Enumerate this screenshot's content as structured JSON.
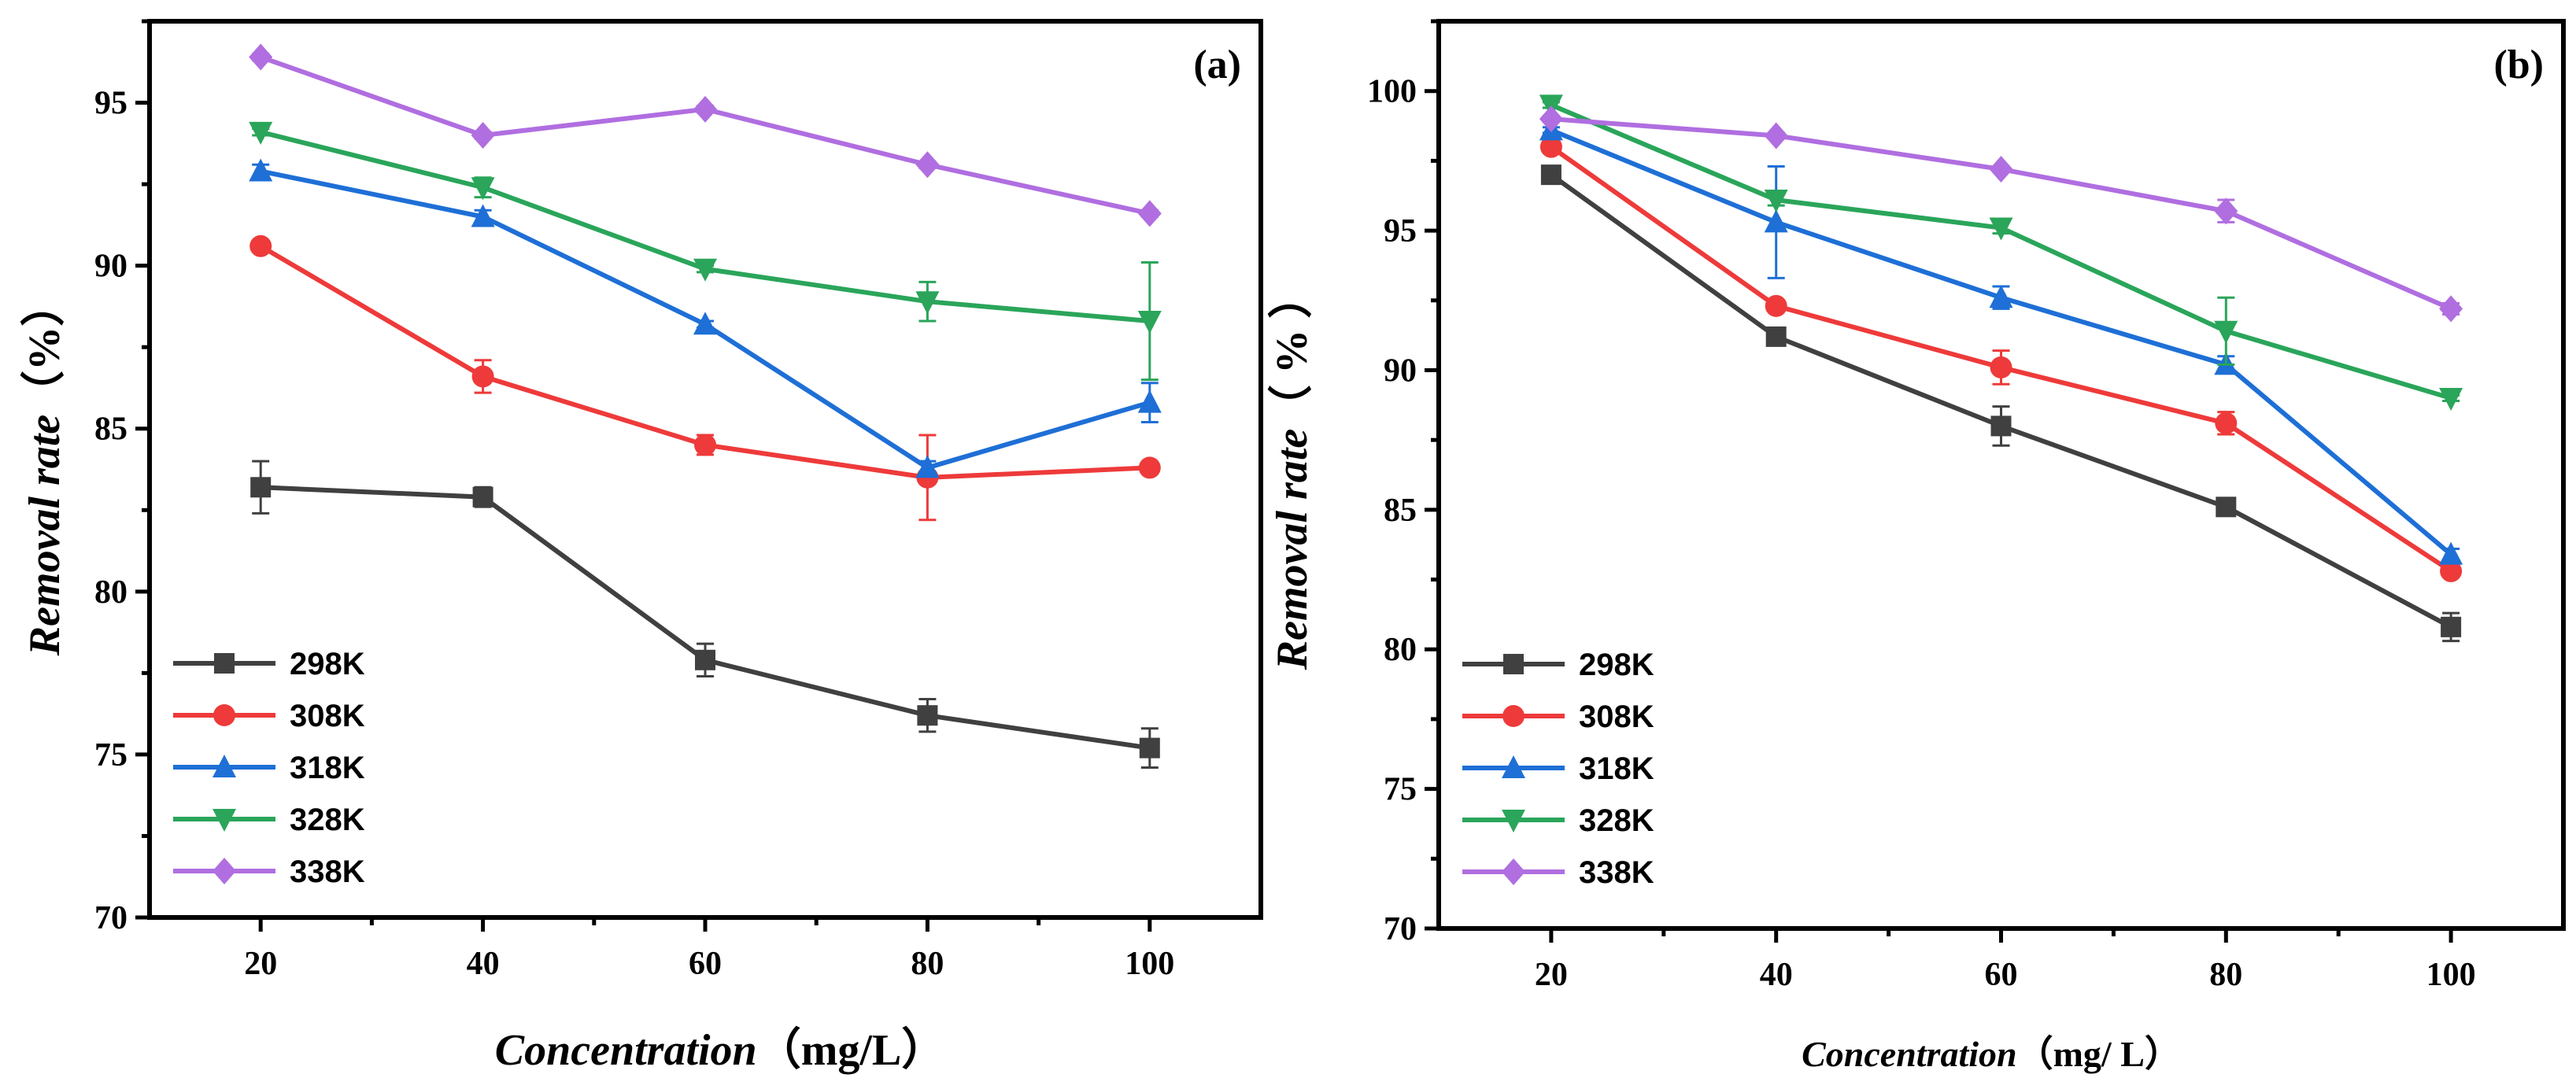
{
  "chart_data": [
    {
      "type": "line",
      "panel_label": "(a)",
      "x": [
        20,
        40,
        60,
        80,
        100
      ],
      "xlim": [
        10,
        110
      ],
      "ylim": [
        70,
        97.5
      ],
      "yticks": [
        70,
        75,
        80,
        85,
        90,
        95
      ],
      "xlabel": "Concentration",
      "xlabel_unit": "（mg/L）",
      "ylabel": "Removal rate",
      "ylabel_unit": "（%）",
      "legend_position": "bottom-left",
      "series": [
        {
          "name": "298K",
          "color": "#404040",
          "marker": "square",
          "values": [
            83.2,
            82.9,
            77.9,
            76.2,
            75.2
          ],
          "errors": [
            0.8,
            0.3,
            0.5,
            0.5,
            0.6
          ]
        },
        {
          "name": "308K",
          "color": "#ee3a3a",
          "marker": "circle",
          "values": [
            90.6,
            86.6,
            84.5,
            83.5,
            83.8
          ],
          "errors": [
            0.1,
            0.5,
            0.3,
            1.3,
            0.1
          ]
        },
        {
          "name": "318K",
          "color": "#1e6fd6",
          "marker": "triangle-up",
          "values": [
            92.9,
            91.5,
            88.2,
            83.8,
            85.8
          ],
          "errors": [
            0.2,
            0.2,
            0.1,
            0.2,
            0.6
          ]
        },
        {
          "name": "328K",
          "color": "#2aa55a",
          "marker": "triangle-down",
          "values": [
            94.1,
            92.4,
            89.9,
            88.9,
            88.3
          ],
          "errors": [
            0.1,
            0.3,
            0.1,
            0.6,
            1.8
          ]
        },
        {
          "name": "338K",
          "color": "#b06ee0",
          "marker": "diamond",
          "values": [
            96.4,
            94.0,
            94.8,
            93.1,
            91.6
          ],
          "errors": [
            0.1,
            0.1,
            0.1,
            0.1,
            0.1
          ]
        }
      ]
    },
    {
      "type": "line",
      "panel_label": "(b)",
      "x": [
        20,
        40,
        60,
        80,
        100
      ],
      "xlim": [
        10,
        110
      ],
      "ylim": [
        70,
        102.5
      ],
      "yticks": [
        70,
        75,
        80,
        85,
        90,
        95,
        100
      ],
      "xlabel": "Concentration",
      "xlabel_unit": "（mg/ L）",
      "ylabel": "Removal rate",
      "ylabel_unit": "（ % ）",
      "legend_position": "bottom-left",
      "series": [
        {
          "name": "298K",
          "color": "#404040",
          "marker": "square",
          "values": [
            97.0,
            91.2,
            88.0,
            85.1,
            80.8
          ],
          "errors": [
            0.1,
            0.1,
            0.7,
            0.2,
            0.5
          ]
        },
        {
          "name": "308K",
          "color": "#ee3a3a",
          "marker": "circle",
          "values": [
            98.0,
            92.3,
            90.1,
            88.1,
            82.8
          ],
          "errors": [
            0.1,
            0.1,
            0.6,
            0.4,
            0.2
          ]
        },
        {
          "name": "318K",
          "color": "#1e6fd6",
          "marker": "triangle-up",
          "values": [
            98.6,
            95.3,
            92.6,
            90.2,
            83.4
          ],
          "errors": [
            0.1,
            2.0,
            0.4,
            0.3,
            0.2
          ]
        },
        {
          "name": "328K",
          "color": "#2aa55a",
          "marker": "triangle-down",
          "values": [
            99.5,
            96.1,
            95.1,
            91.4,
            89.0
          ],
          "errors": [
            0.1,
            0.2,
            0.2,
            1.2,
            0.1
          ]
        },
        {
          "name": "338K",
          "color": "#b06ee0",
          "marker": "diamond",
          "values": [
            99.0,
            98.4,
            97.2,
            95.7,
            92.2
          ],
          "errors": [
            0.1,
            0.1,
            0.1,
            0.4,
            0.2
          ]
        }
      ]
    }
  ]
}
